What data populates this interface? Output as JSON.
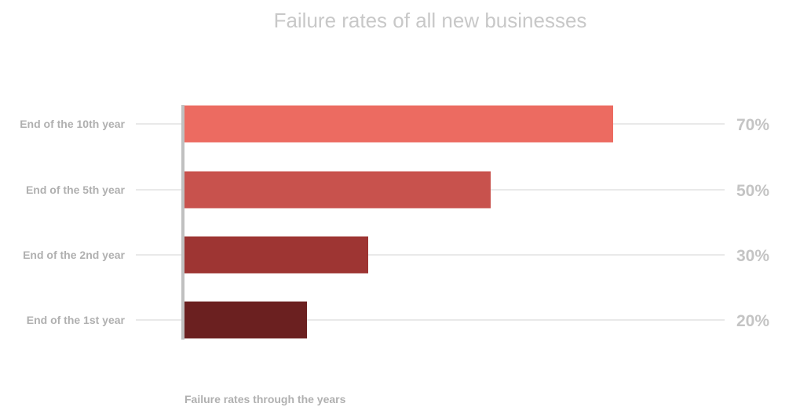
{
  "chart_data": {
    "type": "bar",
    "orientation": "horizontal",
    "title": "Failure rates of all new businesses",
    "xlabel": "Failure rates through the years",
    "ylabel": "",
    "categories": [
      "End of the 10th year",
      "End of the 5th year",
      "End of the 2nd year",
      "End of the 1st year"
    ],
    "values": [
      70,
      50,
      30,
      20
    ],
    "value_labels": [
      "70%",
      "50%",
      "30%",
      "20%"
    ],
    "xlim": [
      0,
      100
    ],
    "colors": [
      "#ec6b61",
      "#c8524d",
      "#9e3533",
      "#6b2020"
    ],
    "axis_color": "#c0c0c0",
    "grid_color": "#d3d3d3",
    "legend": "none"
  }
}
